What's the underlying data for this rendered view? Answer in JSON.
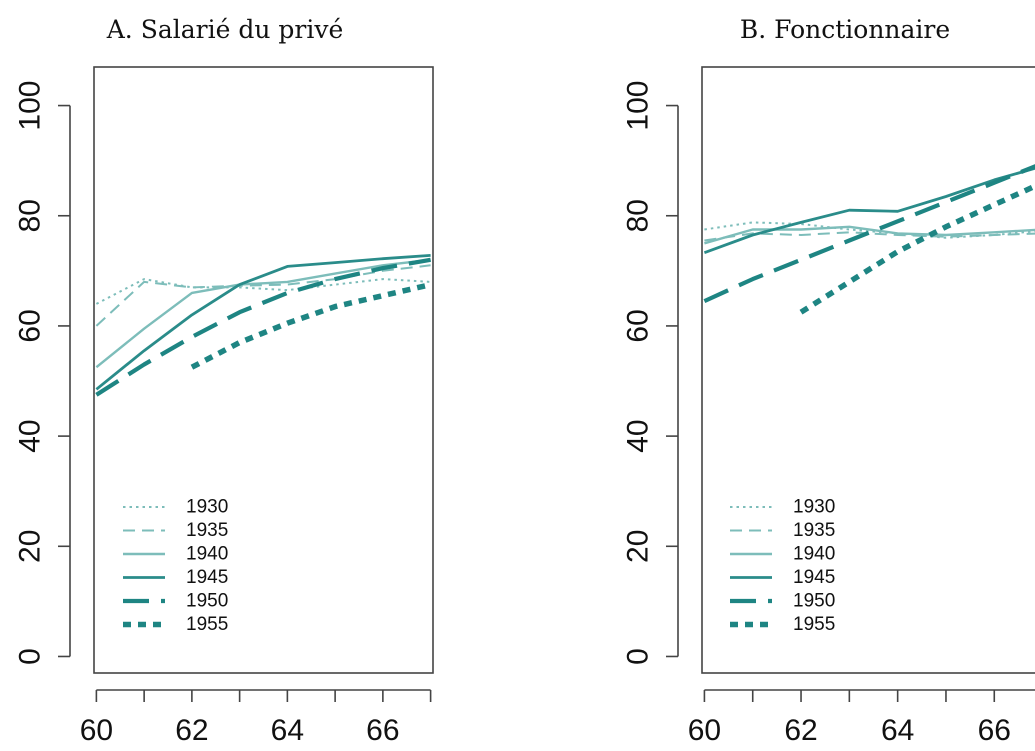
{
  "chart_data": [
    {
      "type": "line",
      "title": "A. Salarié du privé",
      "xlabel": "",
      "ylabel": "",
      "xlim": [
        59.95,
        67.05
      ],
      "ylim": [
        -3,
        107
      ],
      "x_ticks": [
        60,
        61,
        62,
        63,
        64,
        65,
        66,
        67
      ],
      "x_tick_labels": [
        "60",
        "",
        "62",
        "",
        "64",
        "",
        "66",
        ""
      ],
      "y_ticks": [
        0,
        20,
        40,
        60,
        80,
        100
      ],
      "y_tick_labels": [
        "0",
        "20",
        "40",
        "60",
        "80",
        "100"
      ],
      "grid": false,
      "legend_position": "bottom-left",
      "series": [
        {
          "name": "1930",
          "x": [
            60,
            61,
            62,
            63,
            64,
            65,
            66,
            67
          ],
          "y": [
            64,
            68.5,
            67,
            67,
            66.5,
            67.5,
            68.5,
            68
          ]
        },
        {
          "name": "1935",
          "x": [
            60,
            61,
            62,
            63,
            64,
            65,
            66,
            67
          ],
          "y": [
            60,
            68,
            67,
            67.3,
            67.5,
            68.5,
            70,
            71
          ]
        },
        {
          "name": "1940",
          "x": [
            60,
            61,
            62,
            63,
            64,
            65,
            66,
            67
          ],
          "y": [
            52.5,
            59.5,
            66,
            67.5,
            68,
            69.5,
            71,
            72
          ]
        },
        {
          "name": "1945",
          "x": [
            60,
            61,
            62,
            63,
            64,
            65,
            66,
            67
          ],
          "y": [
            48.5,
            55.5,
            62,
            67.5,
            70.8,
            71.5,
            72.2,
            72.8
          ]
        },
        {
          "name": "1950",
          "x": [
            60,
            61,
            62,
            63,
            64,
            65,
            66,
            67
          ],
          "y": [
            47.5,
            53,
            58,
            62.5,
            66,
            68.5,
            70.5,
            72
          ]
        },
        {
          "name": "1955",
          "x": [
            62,
            63,
            64,
            65,
            66,
            67
          ],
          "y": [
            52.5,
            57,
            60.5,
            63.5,
            65.5,
            67.5
          ]
        }
      ]
    },
    {
      "type": "line",
      "title": "B. Fonctionnaire",
      "xlabel": "",
      "ylabel": "",
      "xlim": [
        59.95,
        67.05
      ],
      "ylim": [
        -3,
        107
      ],
      "x_ticks": [
        60,
        61,
        62,
        63,
        64,
        65,
        66,
        67
      ],
      "x_tick_labels": [
        "60",
        "",
        "62",
        "",
        "64",
        "",
        "66",
        ""
      ],
      "y_ticks": [
        0,
        20,
        40,
        60,
        80,
        100
      ],
      "y_tick_labels": [
        "0",
        "20",
        "40",
        "60",
        "80",
        "100"
      ],
      "grid": false,
      "legend_position": "bottom-left",
      "series": [
        {
          "name": "1930",
          "x": [
            60,
            61,
            62,
            63,
            64,
            65,
            66,
            67
          ],
          "y": [
            77.5,
            78.8,
            78.5,
            77.5,
            76.8,
            76,
            76.5,
            77.3
          ]
        },
        {
          "name": "1935",
          "x": [
            60,
            61,
            62,
            63,
            64,
            65,
            66,
            67
          ],
          "y": [
            75.5,
            76.8,
            76.5,
            77,
            76.5,
            76.2,
            76.5,
            76.8
          ]
        },
        {
          "name": "1940",
          "x": [
            60,
            61,
            62,
            63,
            64,
            65,
            66,
            67
          ],
          "y": [
            75,
            77.5,
            77.5,
            78,
            76.8,
            76.5,
            77,
            77.5
          ]
        },
        {
          "name": "1945",
          "x": [
            60,
            61,
            62,
            63,
            64,
            65,
            66,
            67
          ],
          "y": [
            73.3,
            76.5,
            78.8,
            81,
            80.8,
            83.5,
            86.5,
            89
          ]
        },
        {
          "name": "1950",
          "x": [
            60,
            61,
            62,
            63,
            64,
            65,
            66,
            67
          ],
          "y": [
            64.5,
            68.5,
            72,
            75.5,
            79,
            82.5,
            86,
            89.5
          ]
        },
        {
          "name": "1955",
          "x": [
            62,
            63,
            64,
            65,
            66,
            67
          ],
          "y": [
            62.5,
            68,
            73.5,
            78,
            82,
            86
          ]
        }
      ]
    }
  ],
  "styles": {
    "series_colors": {
      "1930": "#7dbdba",
      "1935": "#7dbdba",
      "1940": "#7dbdba",
      "1945": "#2a8c8a",
      "1950": "#1e8583",
      "1955": "#1e8583"
    },
    "axis_color": "#444444",
    "text_color": "#111111"
  }
}
